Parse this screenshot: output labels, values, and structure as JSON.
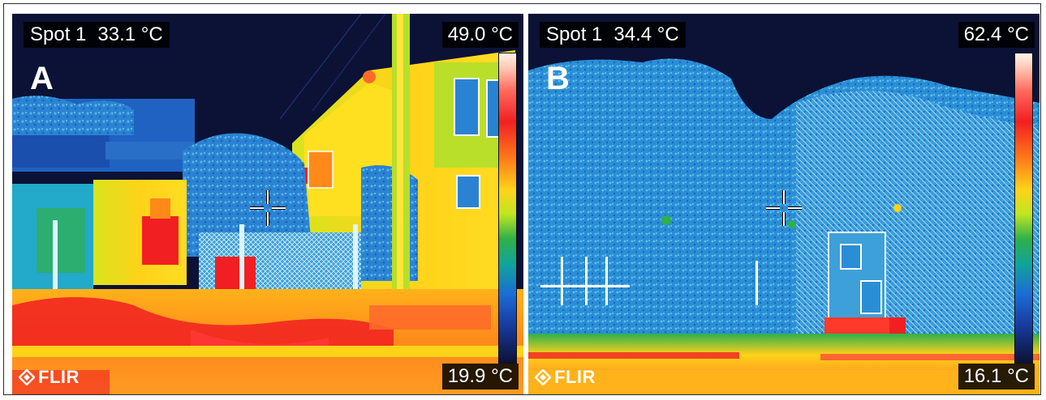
{
  "panels": [
    {
      "letter": "A",
      "spot_label": "Spot 1",
      "spot_value": "33.1 °C",
      "temp_max": "49.0 °C",
      "temp_min": "19.9 °C",
      "logo_text": "FLIR",
      "scene": "house with utility pole, fence and trees at night"
    },
    {
      "letter": "B",
      "spot_label": "Spot 1",
      "spot_value": "34.4 °C",
      "temp_max": "62.4 °C",
      "temp_min": "16.1 °C",
      "logo_text": "FLIR",
      "scene": "dense tree canopy with fence and road"
    }
  ],
  "palette": {
    "sky": "#0b1236",
    "cold_blue": "#1b6cd6",
    "cyan": "#23a9c9",
    "green": "#2fb04a",
    "yellow": "#ffd21a",
    "orange": "#ff8a1a",
    "red": "#f11f22",
    "hot_white": "#fff4ec"
  },
  "icons": [
    "crosshair-icon",
    "flir-logo-icon",
    "temperature-scale-bar"
  ]
}
